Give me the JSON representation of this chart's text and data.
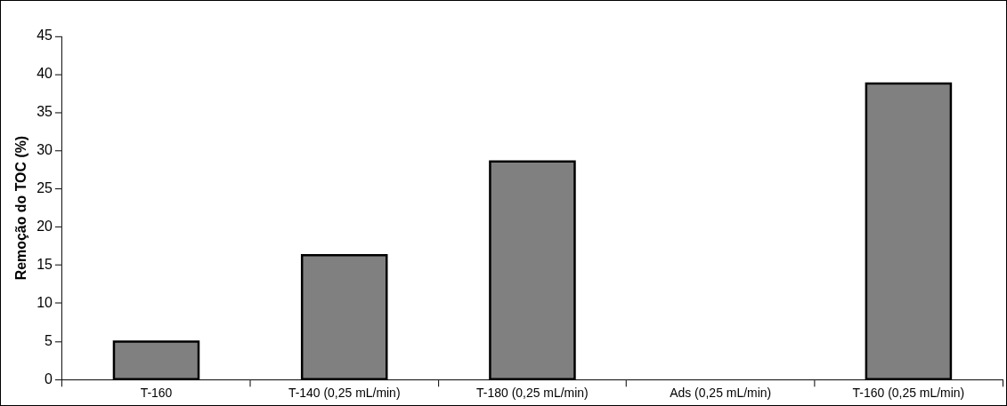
{
  "chart_data": {
    "type": "bar",
    "ylabel": "Remoção do TOC (%)",
    "categories": [
      "T-160",
      "T-140 (0,25 mL/min)",
      "T-180 (0,25 mL/min)",
      "Ads (0,25 mL/min)",
      "T-160 (0,25 mL/min)"
    ],
    "values": [
      5.0,
      16.3,
      28.6,
      0,
      38.8
    ],
    "color": "#808080",
    "ylim": [
      0,
      45
    ],
    "yticks": [
      0,
      5,
      10,
      15,
      20,
      25,
      30,
      35,
      40,
      45
    ],
    "grid": false,
    "legend": false
  }
}
